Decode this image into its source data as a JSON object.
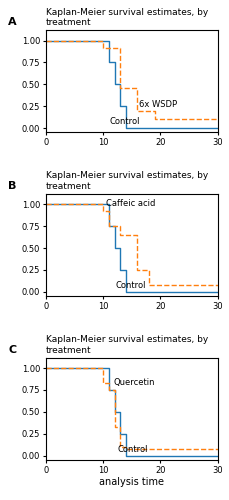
{
  "chart_data": [
    {
      "type": "step",
      "title": "Kaplan-Meier survival estimates, by treatment",
      "subtitle": "A",
      "xlim": [
        0,
        30
      ],
      "ylim": [
        -0.05,
        1.12
      ],
      "xticks": [
        0,
        10,
        20,
        30
      ],
      "yticks": [
        {
          "value": 0.0,
          "label": "0.00"
        },
        {
          "value": 0.25,
          "label": "0.25"
        },
        {
          "value": 0.5,
          "label": "0.50"
        },
        {
          "value": 0.75,
          "label": "0.75"
        },
        {
          "value": 1.0,
          "label": "1.00"
        }
      ],
      "grid": false,
      "series": [
        {
          "x": [
            0,
            10,
            11,
            12,
            13,
            14,
            30
          ],
          "values": [
            1.0,
            1.0,
            0.75,
            0.5,
            0.25,
            0.0,
            0.0
          ],
          "line_style": "solid"
        },
        {
          "x": [
            0,
            10,
            13,
            16,
            19,
            21,
            30
          ],
          "values": [
            1.0,
            0.92,
            0.46,
            0.2,
            0.1,
            0.1,
            0.1
          ],
          "line_style": "dashed"
        }
      ],
      "annotations": [
        {
          "text": "Control",
          "x": 11.2,
          "y": 0.02
        },
        {
          "text": "6x WSDP",
          "x": 16.2,
          "y": 0.22
        }
      ]
    },
    {
      "type": "step",
      "title": "Kaplan-Meier survival estimates, by treatment",
      "subtitle": "B",
      "xlim": [
        0,
        30
      ],
      "ylim": [
        -0.05,
        1.12
      ],
      "xticks": [
        0,
        10,
        20,
        30
      ],
      "yticks": [
        {
          "value": 0.0,
          "label": "0.00"
        },
        {
          "value": 0.25,
          "label": "0.25"
        },
        {
          "value": 0.5,
          "label": "0.50"
        },
        {
          "value": 0.75,
          "label": "0.75"
        },
        {
          "value": 1.0,
          "label": "1.00"
        }
      ],
      "grid": false,
      "series": [
        {
          "x": [
            0,
            10,
            11,
            12,
            13,
            14,
            30
          ],
          "values": [
            1.0,
            1.0,
            0.75,
            0.5,
            0.25,
            0.0,
            0.0
          ],
          "line_style": "solid"
        },
        {
          "x": [
            0,
            10,
            11,
            13,
            16,
            18,
            30
          ],
          "values": [
            1.0,
            0.92,
            0.75,
            0.65,
            0.25,
            0.08,
            0.08
          ],
          "line_style": "dashed"
        }
      ],
      "annotations": [
        {
          "text": "Control",
          "x": 12.2,
          "y": 0.02
        },
        {
          "text": "Caffeic acid",
          "x": 10.5,
          "y": 0.96
        }
      ]
    },
    {
      "type": "step",
      "title": "Kaplan-Meier survival estimates, by treatment",
      "subtitle": "C",
      "xlabel": "analysis time",
      "xlim": [
        0,
        30
      ],
      "ylim": [
        -0.05,
        1.12
      ],
      "xticks": [
        0,
        10,
        20,
        30
      ],
      "yticks": [
        {
          "value": 0.0,
          "label": "0.00"
        },
        {
          "value": 0.25,
          "label": "0.25"
        },
        {
          "value": 0.5,
          "label": "0.50"
        },
        {
          "value": 0.75,
          "label": "0.75"
        },
        {
          "value": 1.0,
          "label": "1.00"
        }
      ],
      "grid": false,
      "series": [
        {
          "x": [
            0,
            10,
            11,
            12,
            13,
            14,
            30
          ],
          "values": [
            1.0,
            1.0,
            0.75,
            0.5,
            0.25,
            0.0,
            0.0
          ],
          "line_style": "solid"
        },
        {
          "x": [
            0,
            10,
            11,
            12,
            13,
            14,
            30
          ],
          "values": [
            1.0,
            0.83,
            0.75,
            0.33,
            0.1,
            0.08,
            0.08
          ],
          "line_style": "dashed"
        }
      ],
      "annotations": [
        {
          "text": "Control",
          "x": 12.5,
          "y": 0.02
        },
        {
          "text": "Quercetin",
          "x": 11.8,
          "y": 0.78
        }
      ]
    }
  ]
}
